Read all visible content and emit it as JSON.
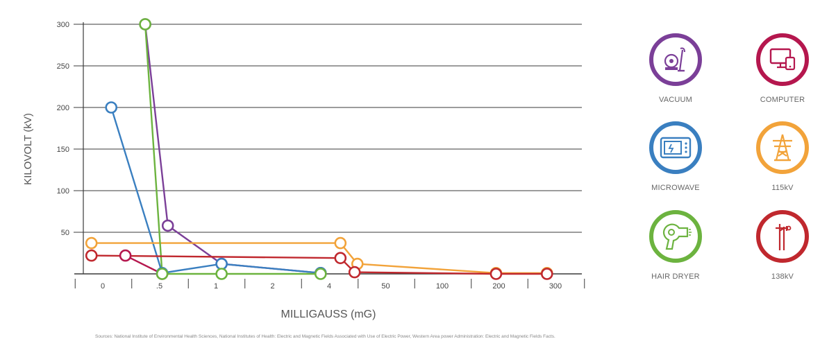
{
  "chart_data": {
    "type": "line",
    "xlabel": "MILLIGAUSS (mG)",
    "ylabel": "KILOVOLT (kV)",
    "categories": [
      "0",
      ".5",
      "1",
      "2",
      "4",
      "50",
      "100",
      "200",
      "300"
    ],
    "yticks": [
      50,
      100,
      150,
      200,
      250,
      300
    ],
    "ylim": [
      0,
      300
    ],
    "grid": true,
    "legend_position": "right",
    "series": [
      {
        "name": "VACUUM",
        "color": "#7b3f98",
        "points": [
          [
            0.75,
            300
          ],
          [
            1.15,
            58
          ],
          [
            2.1,
            12
          ],
          [
            3.85,
            1
          ]
        ]
      },
      {
        "name": "COMPUTER",
        "color": "#b5174e",
        "points": [
          [
            0.4,
            22
          ],
          [
            1.05,
            0
          ]
        ]
      },
      {
        "name": "MICROWAVE",
        "color": "#3a7fc0",
        "points": [
          [
            0.15,
            200
          ],
          [
            1.05,
            1
          ],
          [
            2.1,
            12
          ],
          [
            3.85,
            1
          ]
        ]
      },
      {
        "name": "115kV",
        "color": "#f2a33a",
        "points": [
          [
            -0.2,
            37
          ],
          [
            4.2,
            37
          ],
          [
            4.5,
            12
          ],
          [
            6.95,
            1
          ],
          [
            7.85,
            1
          ]
        ]
      },
      {
        "name": "HAIR DRYER",
        "color": "#6cb33f",
        "points": [
          [
            0.75,
            300
          ],
          [
            1.05,
            0
          ],
          [
            2.1,
            0
          ],
          [
            3.85,
            0
          ]
        ]
      },
      {
        "name": "138kV",
        "color": "#c0282e",
        "points": [
          [
            -0.2,
            22
          ],
          [
            4.2,
            19
          ],
          [
            4.45,
            2
          ],
          [
            6.95,
            0
          ],
          [
            7.85,
            0
          ]
        ]
      }
    ]
  },
  "legend": [
    {
      "label": "VACUUM",
      "color": "#7b3f98",
      "icon": "vacuum-icon"
    },
    {
      "label": "COMPUTER",
      "color": "#b5174e",
      "icon": "computer-icon"
    },
    {
      "label": "MICROWAVE",
      "color": "#3a7fc0",
      "icon": "microwave-icon"
    },
    {
      "label": "115kV",
      "color": "#f2a33a",
      "icon": "transmission-tower-icon"
    },
    {
      "label": "HAIR DRYER",
      "color": "#6cb33f",
      "icon": "hair-dryer-icon"
    },
    {
      "label": "138kV",
      "color": "#c0282e",
      "icon": "power-pole-icon"
    }
  ],
  "source_note": "Sources: National Institute of Environmental Health Sciences, National Institutes of Health: Electric and Magnetic Fields Associated with Use of Electric Power, Western Area power Administration: Electric and Magnetic Fields Facts."
}
